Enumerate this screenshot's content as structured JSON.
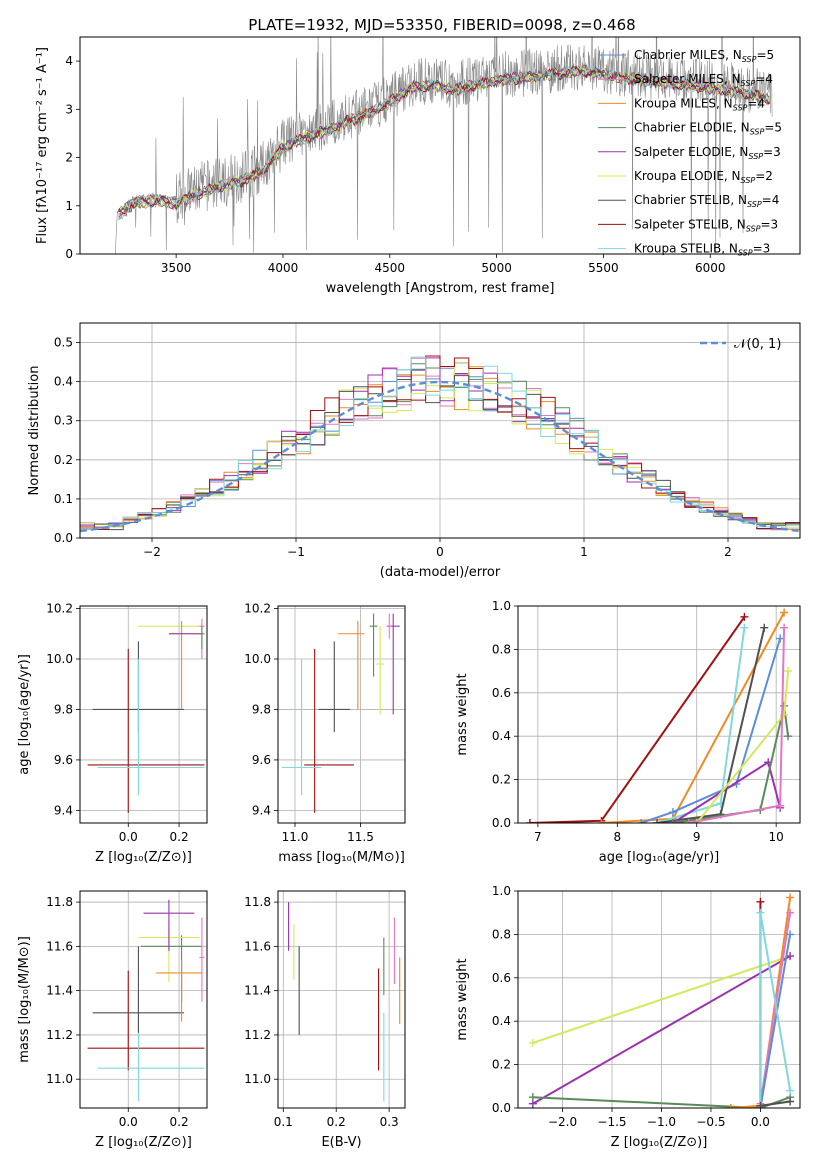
{
  "figure_title": "PLATE=1932, MJD=53350, FIBERID=0098, z=0.468",
  "colors": {
    "Chabrier MILES": "#5b8ed6",
    "Salpeter MILES": "#e377c2",
    "Kroupa MILES": "#f08a24",
    "Chabrier ELODIE": "#5a8a5a",
    "Salpeter ELODIE": "#9b30b0",
    "Kroupa ELODIE": "#d4e85a",
    "Chabrier STELIB": "#505050",
    "Salpeter STELIB": "#a01010",
    "Kroupa STELIB": "#7fd8dc"
  },
  "chart_data": [
    {
      "id": "spectrum",
      "type": "line",
      "title": "PLATE=1932, MJD=53350, FIBERID=0098, z=0.468",
      "xlabel": "wavelength [Angstrom, rest frame]",
      "ylabel": "Flux [fλ10⁻¹⁷ erg cm⁻² s⁻¹ A⁻¹]",
      "xlim": [
        3050,
        6420
      ],
      "ylim": [
        0,
        4.5
      ],
      "xticks": [
        "3500",
        "4000",
        "4500",
        "5000",
        "5500",
        "6000"
      ],
      "yticks": [
        "0",
        "1",
        "2",
        "3",
        "4"
      ],
      "grid": false,
      "legend": "top-right",
      "legend_entries": [
        {
          "name": "Chabrier MILES",
          "nssp": "5"
        },
        {
          "name": "Salpeter MILES",
          "nssp": "4"
        },
        {
          "name": "Kroupa MILES",
          "nssp": "4"
        },
        {
          "name": "Chabrier ELODIE",
          "nssp": "5"
        },
        {
          "name": "Salpeter ELODIE",
          "nssp": "3"
        },
        {
          "name": "Kroupa ELODIE",
          "nssp": "2"
        },
        {
          "name": "Chabrier STELIB",
          "nssp": "4"
        },
        {
          "name": "Salpeter STELIB",
          "nssp": "3"
        },
        {
          "name": "Kroupa STELIB",
          "nssp": "3"
        }
      ],
      "continuum": {
        "x": [
          3230,
          3300,
          3400,
          3500,
          3600,
          3700,
          3800,
          3900,
          4000,
          4100,
          4200,
          4300,
          4400,
          4500,
          4600,
          4700,
          4800,
          4900,
          5000,
          5200,
          5400,
          5600,
          5800,
          6000,
          6200,
          6280
        ],
        "y": [
          0.9,
          1.15,
          1.2,
          1.15,
          1.35,
          1.5,
          1.6,
          1.8,
          2.3,
          2.5,
          2.65,
          2.85,
          3.0,
          3.25,
          3.55,
          3.6,
          3.5,
          3.6,
          3.7,
          3.8,
          3.9,
          3.75,
          3.65,
          3.55,
          3.4,
          3.3
        ]
      }
    },
    {
      "id": "residual-histogram",
      "type": "bar",
      "xlabel": "(data-model)/error",
      "ylabel": "Normed distribution",
      "xlim": [
        -2.5,
        2.5
      ],
      "ylim": [
        0,
        0.55
      ],
      "xticks": [
        "−2",
        "−1",
        "0",
        "1",
        "2"
      ],
      "yticks": [
        "0.0",
        "0.1",
        "0.2",
        "0.3",
        "0.4",
        "0.5"
      ],
      "grid": true,
      "legend": "top-right",
      "legend_label": "𝒩(0, 1)",
      "bin_width": 0.1
    },
    {
      "id": "age-vs-metallicity",
      "type": "scatter",
      "xlabel": "Z [log₁₀(Z/Z⊙)]",
      "ylabel": "age  [log₁₀(age/yr)]",
      "xlim": [
        -0.19,
        0.31
      ],
      "ylim": [
        9.35,
        10.21
      ],
      "xticks": [
        "0.0",
        "0.2"
      ],
      "yticks": [
        "9.4",
        "9.6",
        "9.8",
        "10.0",
        "10.2"
      ],
      "grid": true,
      "points": [
        {
          "series": "Chabrier STELIB",
          "x": 0.04,
          "y": 9.8,
          "xerr": 0.18,
          "yerr": [
            0.09,
            0.27
          ]
        },
        {
          "series": "Salpeter STELIB",
          "x": 0.0,
          "y": 9.58,
          "xerr": [
            0.16,
            0.3
          ],
          "yerr": [
            0.19,
            0.46
          ]
        },
        {
          "series": "Kroupa STELIB",
          "x": 0.04,
          "y": 9.57,
          "xerr": [
            0.16,
            0.26
          ],
          "yerr": [
            0.11,
            0.43
          ]
        },
        {
          "series": "Kroupa ELODIE",
          "x": 0.16,
          "y": 10.13,
          "xerr": [
            0.12,
            0.12
          ],
          "yerr": [
            0.0,
            0.0
          ]
        },
        {
          "series": "Kroupa MILES",
          "x": 0.21,
          "y": 10.1,
          "xerr": [
            0.05,
            0.08
          ],
          "yerr": [
            0.3,
            0.05
          ]
        },
        {
          "series": "Salpeter ELODIE",
          "x": 0.21,
          "y": 10.1,
          "xerr": [
            0.05,
            0.08
          ],
          "yerr": [
            0.0,
            0.0
          ]
        },
        {
          "series": "Salpeter MILES",
          "x": 0.29,
          "y": 10.13,
          "xerr": [
            0.01,
            0.01
          ],
          "yerr": [
            0.13,
            0.03
          ]
        },
        {
          "series": "Chabrier ELODIE",
          "x": 0.29,
          "y": 10.1,
          "xerr": [
            0.01,
            0.01
          ],
          "yerr": [
            0.06,
            0.03
          ]
        }
      ]
    },
    {
      "id": "age-vs-mass",
      "type": "scatter",
      "xlabel": "mass [log₁₀(M/M⊙)]",
      "ylabel": "",
      "xlim": [
        10.87,
        11.84
      ],
      "ylim": [
        9.35,
        10.21
      ],
      "xticks": [
        "11.0",
        "11.5"
      ],
      "yticks": [
        "9.4",
        "9.6",
        "9.8",
        "10.0",
        "10.2"
      ],
      "grid": true,
      "points": [
        {
          "series": "Chabrier STELIB",
          "x": 11.3,
          "y": 9.8,
          "xerr": 0.12,
          "yerr": [
            0.09,
            0.27
          ]
        },
        {
          "series": "Salpeter STELIB",
          "x": 11.15,
          "y": 9.58,
          "xerr": [
            0.08,
            0.3
          ],
          "yerr": [
            0.19,
            0.46
          ]
        },
        {
          "series": "Kroupa STELIB",
          "x": 11.05,
          "y": 9.57,
          "xerr": [
            0.15,
            0.15
          ],
          "yerr": [
            0.11,
            0.43
          ]
        },
        {
          "series": "Kroupa ELODIE",
          "x": 11.65,
          "y": 9.98,
          "xerr": [
            0.03,
            0.03
          ],
          "yerr": [
            0.2,
            0.15
          ]
        },
        {
          "series": "Kroupa MILES",
          "x": 11.48,
          "y": 10.1,
          "xerr": [
            0.15,
            0.05
          ],
          "yerr": [
            0.3,
            0.05
          ]
        },
        {
          "series": "Chabrier ELODIE",
          "x": 11.6,
          "y": 10.13,
          "xerr": [
            0.03,
            0.03
          ],
          "yerr": [
            0.2,
            0.05
          ]
        },
        {
          "series": "Salpeter ELODIE",
          "x": 11.75,
          "y": 10.13,
          "xerr": [
            0.05,
            0.05
          ],
          "yerr": [
            0.35,
            0.05
          ]
        },
        {
          "series": "Salpeter MILES",
          "x": 11.72,
          "y": 10.13,
          "xerr": [
            0.02,
            0.02
          ],
          "yerr": [
            0.05,
            0.05
          ]
        }
      ]
    },
    {
      "id": "mass-weight-vs-age",
      "type": "line",
      "xlabel": "age  [log₁₀(age/yr)]",
      "ylabel": "mass weight",
      "xlim": [
        6.75,
        10.3
      ],
      "ylim": [
        0,
        1.0
      ],
      "xticks": [
        "7",
        "8",
        "9",
        "10"
      ],
      "yticks": [
        "0.0",
        "0.2",
        "0.4",
        "0.6",
        "0.8",
        "1.0"
      ],
      "grid": true,
      "series": [
        {
          "name": "Salpeter STELIB",
          "x": [
            6.9,
            7.8,
            9.6
          ],
          "y": [
            0.0,
            0.01,
            0.95
          ]
        },
        {
          "name": "Kroupa MILES",
          "x": [
            7.8,
            8.7,
            10.1
          ],
          "y": [
            0.0,
            0.02,
            0.97
          ]
        },
        {
          "name": "Chabrier MILES",
          "x": [
            8.3,
            8.7,
            9.5,
            10.05
          ],
          "y": [
            0.0,
            0.05,
            0.18,
            0.85
          ]
        },
        {
          "name": "Kroupa STELIB",
          "x": [
            8.5,
            9.3,
            9.6
          ],
          "y": [
            0.0,
            0.09,
            0.9
          ]
        },
        {
          "name": "Chabrier STELIB",
          "x": [
            8.5,
            9.3,
            9.85
          ],
          "y": [
            0.0,
            0.04,
            0.9
          ]
        },
        {
          "name": "Salpeter ELODIE",
          "x": [
            8.7,
            9.9,
            10.05
          ],
          "y": [
            0.0,
            0.28,
            0.07
          ]
        },
        {
          "name": "Chabrier ELODIE",
          "x": [
            8.7,
            9.8,
            10.1,
            10.15
          ],
          "y": [
            0.0,
            0.06,
            0.54,
            0.4
          ]
        },
        {
          "name": "Kroupa ELODIE",
          "x": [
            9.0,
            10.1,
            10.15
          ],
          "y": [
            0.0,
            0.5,
            0.7
          ]
        },
        {
          "name": "Salpeter MILES",
          "x": [
            8.9,
            10.05,
            10.1
          ],
          "y": [
            0.0,
            0.08,
            0.9
          ]
        }
      ]
    },
    {
      "id": "mass-vs-metallicity",
      "type": "scatter",
      "xlabel": "Z [log₁₀(Z/Z⊙)]",
      "ylabel": "mass [log₁₀(M/M⊙)]",
      "xlim": [
        -0.19,
        0.31
      ],
      "ylim": [
        10.87,
        11.85
      ],
      "xticks": [
        "0.0",
        "0.2"
      ],
      "yticks": [
        "11.0",
        "11.2",
        "11.4",
        "11.6",
        "11.8"
      ],
      "grid": true,
      "points": [
        {
          "series": "Salpeter STELIB",
          "x": 0.0,
          "y": 11.14,
          "xerr": [
            0.16,
            0.3
          ],
          "yerr": [
            0.1,
            0.35
          ]
        },
        {
          "series": "Kroupa STELIB",
          "x": 0.04,
          "y": 11.05,
          "xerr": [
            0.16,
            0.26
          ],
          "yerr": [
            0.15,
            0.35
          ]
        },
        {
          "series": "Chabrier STELIB",
          "x": 0.04,
          "y": 11.3,
          "xerr": [
            0.18,
            0.18
          ],
          "yerr": [
            0.09,
            0.3
          ]
        },
        {
          "series": "Chabrier ELODIE",
          "x": 0.21,
          "y": 11.6,
          "xerr": [
            0.16,
            0.08
          ],
          "yerr": [
            0.25,
            0.05
          ]
        },
        {
          "series": "Kroupa ELODIE",
          "x": 0.16,
          "y": 11.64,
          "xerr": [
            0.12,
            0.12
          ],
          "yerr": [
            0.2,
            0.05
          ]
        },
        {
          "series": "Salpeter ELODIE",
          "x": 0.16,
          "y": 11.75,
          "xerr": [
            0.1,
            0.1
          ],
          "yerr": [
            0.17,
            0.06
          ]
        },
        {
          "series": "Kroupa MILES",
          "x": 0.21,
          "y": 11.48,
          "xerr": [
            0.1,
            0.08
          ],
          "yerr": [
            0.22,
            0.06
          ]
        },
        {
          "series": "Salpeter MILES",
          "x": 0.29,
          "y": 11.55,
          "xerr": [
            0.01,
            0.01
          ],
          "yerr": [
            0.2,
            0.18
          ]
        }
      ]
    },
    {
      "id": "mass-vs-ebv",
      "type": "scatter",
      "xlabel": "E(B-V)",
      "ylabel": "",
      "xlim": [
        0.09,
        0.33
      ],
      "ylim": [
        10.87,
        11.85
      ],
      "xticks": [
        "0.1",
        "0.2",
        "0.3"
      ],
      "yticks": [
        "11.0",
        "11.2",
        "11.4",
        "11.6",
        "11.8"
      ],
      "grid": true,
      "points": [
        {
          "series": "Salpeter ELODIE",
          "x": 0.11,
          "y": 11.7,
          "xerr": [
            0,
            0
          ],
          "yerr": [
            0.12,
            0.1
          ]
        },
        {
          "series": "Kroupa ELODIE",
          "x": 0.12,
          "y": 11.55,
          "xerr": [
            0,
            0
          ],
          "yerr": [
            0.1,
            0.15
          ]
        },
        {
          "series": "Chabrier STELIB",
          "x": 0.13,
          "y": 11.4,
          "xerr": [
            0,
            0
          ],
          "yerr": [
            0.2,
            0.2
          ]
        },
        {
          "series": "Salpeter STELIB",
          "x": 0.28,
          "y": 11.27,
          "xerr": [
            0,
            0
          ],
          "yerr": [
            0.23,
            0.23
          ]
        },
        {
          "series": "Kroupa STELIB",
          "x": 0.29,
          "y": 11.1,
          "xerr": [
            0,
            0
          ],
          "yerr": [
            0.2,
            0.2
          ]
        },
        {
          "series": "Chabrier ELODIE",
          "x": 0.29,
          "y": 11.5,
          "xerr": [
            0,
            0
          ],
          "yerr": [
            0.12,
            0.14
          ]
        },
        {
          "series": "Salpeter MILES",
          "x": 0.31,
          "y": 11.55,
          "xerr": [
            0,
            0
          ],
          "yerr": [
            0.12,
            0.18
          ]
        },
        {
          "series": "Kroupa MILES",
          "x": 0.32,
          "y": 11.4,
          "xerr": [
            0,
            0
          ],
          "yerr": [
            0.15,
            0.15
          ]
        }
      ]
    },
    {
      "id": "mass-weight-vs-metallicity",
      "type": "line",
      "xlabel": "Z [log₁₀(Z/Z⊙)]",
      "ylabel": "mass weight",
      "xlim": [
        -2.45,
        0.4
      ],
      "ylim": [
        0,
        1.0
      ],
      "xticks": [
        "−2.0",
        "−1.5",
        "−1.0",
        "−0.5",
        "0.0"
      ],
      "yticks": [
        "0.0",
        "0.2",
        "0.4",
        "0.6",
        "0.8",
        "1.0"
      ],
      "grid": true,
      "series": [
        {
          "name": "Kroupa ELODIE",
          "x": [
            -2.3,
            0.3
          ],
          "y": [
            0.3,
            0.7
          ]
        },
        {
          "name": "Salpeter ELODIE",
          "x": [
            -2.3,
            0.3
          ],
          "y": [
            0.02,
            0.7
          ]
        },
        {
          "name": "Chabrier ELODIE",
          "x": [
            -2.3,
            0.0,
            0.3
          ],
          "y": [
            0.05,
            0.0,
            0.05
          ]
        },
        {
          "name": "Kroupa MILES",
          "x": [
            -0.3,
            0.0,
            0.3
          ],
          "y": [
            0.0,
            0.01,
            0.97
          ]
        },
        {
          "name": "Salpeter MILES",
          "x": [
            0.0,
            0.3
          ],
          "y": [
            0.02,
            0.9
          ]
        },
        {
          "name": "Chabrier MILES",
          "x": [
            0.0,
            0.3
          ],
          "y": [
            0.0,
            0.8
          ]
        },
        {
          "name": "Salpeter STELIB",
          "x": [
            0.0,
            0.0
          ],
          "y": [
            0.0,
            0.95
          ]
        },
        {
          "name": "Kroupa STELIB",
          "x": [
            0.0,
            0.0,
            0.3
          ],
          "y": [
            0.0,
            0.9,
            0.08
          ]
        },
        {
          "name": "Chabrier STELIB",
          "x": [
            0.0,
            0.3
          ],
          "y": [
            0.01,
            0.03
          ]
        }
      ]
    }
  ]
}
